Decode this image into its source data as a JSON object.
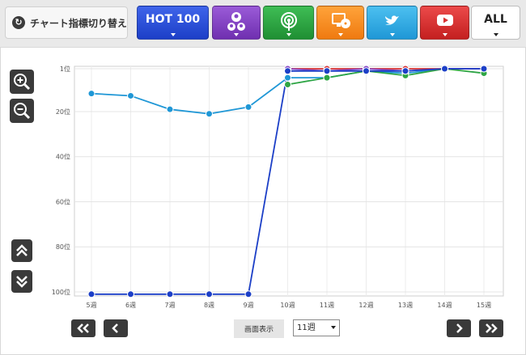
{
  "toolbar": {
    "switch_label": "チャート指標切り替え",
    "hot100_label": "HOT 100",
    "all_label": "ALL",
    "buttons": [
      {
        "name": "hot100",
        "color": "#2b4fdc"
      },
      {
        "name": "user-icon",
        "color": "#8446c6"
      },
      {
        "name": "radio-icon",
        "color": "#2ea544"
      },
      {
        "name": "pc-disc-icon",
        "color": "#f78c22"
      },
      {
        "name": "twitter-icon",
        "color": "#33ade5"
      },
      {
        "name": "youtube-icon",
        "color": "#d73232"
      },
      {
        "name": "all",
        "color": "#ffffff"
      }
    ]
  },
  "controls": {
    "display_label": "画面表示",
    "range_value": "11週"
  },
  "chart_data": {
    "type": "line",
    "categories": [
      "5週",
      "6週",
      "7週",
      "8週",
      "9週",
      "10週",
      "11週",
      "12週",
      "13週",
      "14週",
      "15週"
    ],
    "y_tick_labels": [
      "1位",
      "20位",
      "40位",
      "60位",
      "80位",
      "100位"
    ],
    "y_ticks": [
      1,
      20,
      40,
      60,
      80,
      100
    ],
    "ylim": [
      100,
      1
    ],
    "y_inverted": true,
    "grid": true,
    "series": [
      {
        "color": "#1f97d6",
        "values": [
          12,
          13,
          19,
          21,
          18,
          5,
          5,
          2,
          3,
          1,
          1
        ]
      },
      {
        "color": "#2ea544",
        "values": [
          null,
          null,
          null,
          null,
          null,
          8,
          5,
          2,
          4,
          1,
          3
        ]
      },
      {
        "color": "#d73232",
        "values": [
          null,
          null,
          null,
          null,
          null,
          1,
          1,
          1,
          1,
          1,
          1
        ]
      },
      {
        "color": "#f78c22",
        "values": [
          null,
          null,
          null,
          null,
          null,
          null,
          null,
          null,
          null,
          1,
          null
        ]
      },
      {
        "color": "#8446c6",
        "values": [
          null,
          null,
          null,
          null,
          null,
          1,
          2,
          1,
          2,
          1,
          1
        ]
      },
      {
        "color": "#1c3fc7",
        "values": [
          101,
          101,
          101,
          101,
          101,
          2,
          2,
          2,
          2,
          1,
          1
        ]
      }
    ]
  }
}
